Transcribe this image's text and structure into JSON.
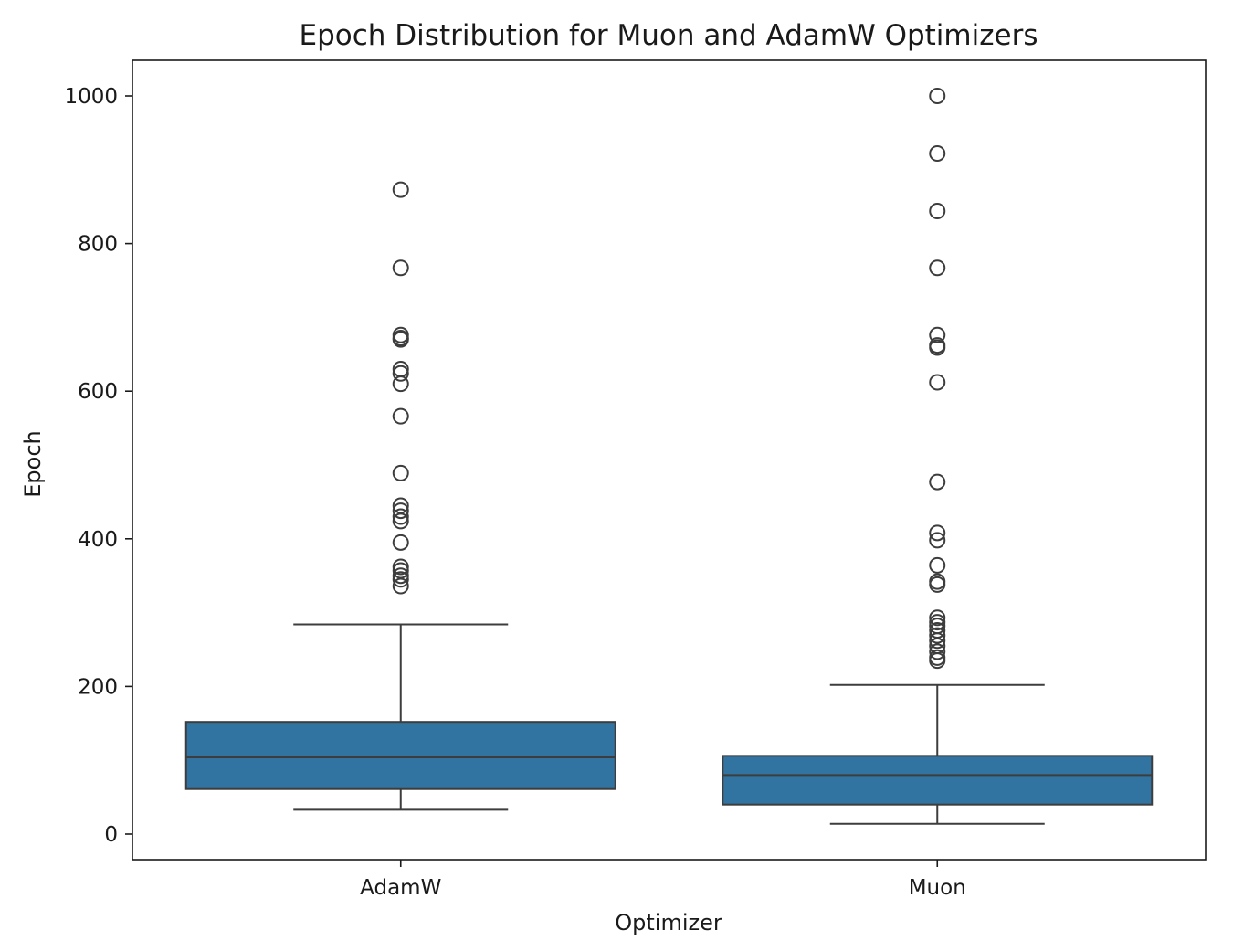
{
  "chart_data": {
    "type": "box",
    "title": "Epoch Distribution for Muon and AdamW Optimizers",
    "xlabel": "Optimizer",
    "ylabel": "Epoch",
    "categories": [
      "AdamW",
      "Muon"
    ],
    "ylim": [
      -35,
      1050
    ],
    "yticks": [
      0,
      200,
      400,
      600,
      800,
      1000
    ],
    "grid": false,
    "legend": "none",
    "box_color": "#3274a1",
    "line_color": "#3d3d3d",
    "boxes": [
      {
        "category": "AdamW",
        "whisker_low": 33,
        "q1": 61,
        "median": 104,
        "q3": 152,
        "whisker_high": 284,
        "outliers": [
          873,
          767,
          676,
          672,
          670,
          630,
          624,
          610,
          566,
          489,
          445,
          438,
          430,
          424,
          395,
          362,
          357,
          350,
          345,
          336
        ]
      },
      {
        "category": "Muon",
        "whisker_low": 14,
        "q1": 40,
        "median": 80,
        "q3": 106,
        "whisker_high": 202,
        "outliers": [
          1000,
          922,
          844,
          767,
          676,
          662,
          659,
          612,
          477,
          408,
          398,
          364,
          342,
          338,
          293,
          287,
          282,
          276,
          269,
          262,
          255,
          247,
          239,
          235
        ]
      }
    ]
  }
}
